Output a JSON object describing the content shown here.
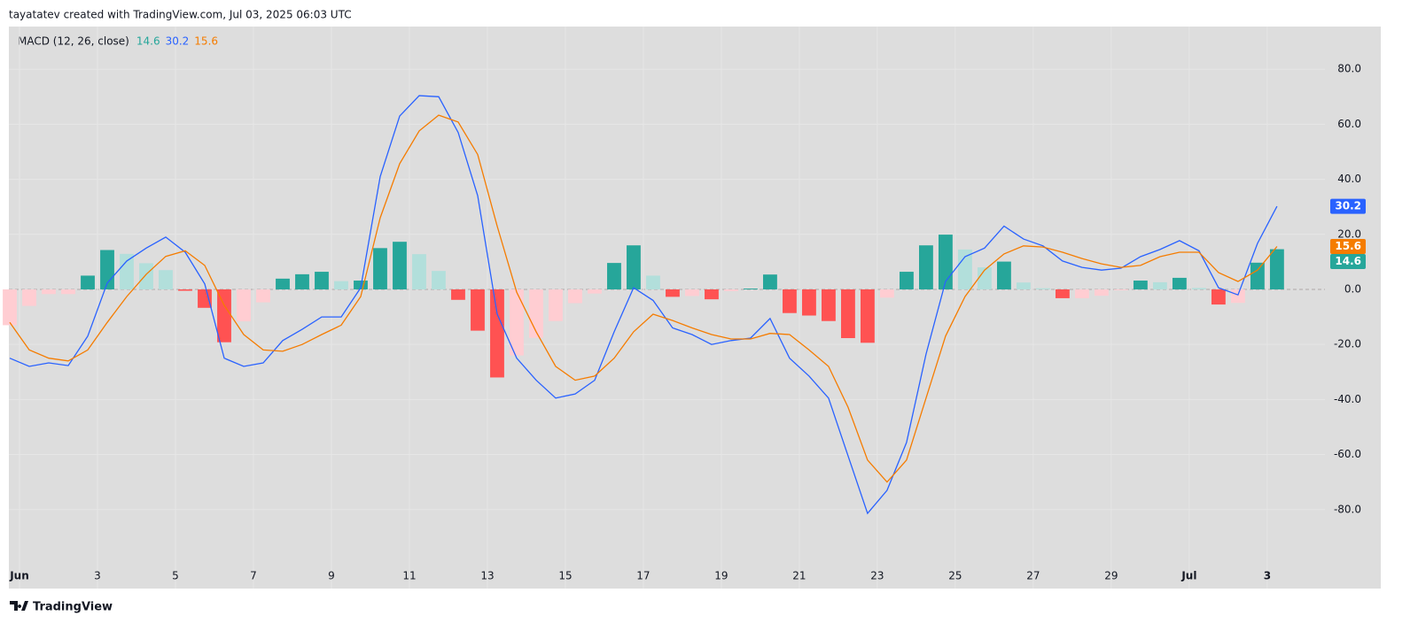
{
  "header": "tayatatev created with TradingView.com, Jul 03, 2025 06:03 UTC",
  "footer": "TradingView",
  "chart_data": {
    "type": "line",
    "title": "MACD (12, 26, close)",
    "x": [
      0.75,
      1.25,
      1.75,
      2.25,
      2.75,
      3.25,
      3.75,
      4.25,
      4.75,
      5.25,
      5.75,
      6.25,
      6.75,
      7.25,
      7.75,
      8.25,
      8.75,
      9.25,
      9.75,
      10.25,
      10.75,
      11.25,
      11.75,
      12.25,
      12.75,
      13.25,
      13.75,
      14.25,
      14.75,
      15.25,
      15.75,
      16.25,
      16.75,
      17.25,
      17.75,
      18.25,
      18.75,
      19.25,
      19.75,
      20.25,
      20.75,
      21.25,
      21.75,
      22.25,
      22.75,
      23.25,
      23.75,
      24.25,
      24.75,
      25.25,
      25.75,
      26.25,
      26.75,
      27.25,
      27.75,
      28.25,
      28.75,
      29.25,
      29.75,
      30.25,
      30.75,
      31.25,
      31.75,
      32.25,
      32.75,
      33.25
    ],
    "series": [
      {
        "type": "bar",
        "colors": [
          "#26a69a",
          "#b2dfdb",
          "#ffcdd2",
          "#ff5252"
        ],
        "color": "#26a69a",
        "values": [
          -13,
          -6,
          -1.7,
          -1.7,
          5,
          14.3,
          12.9,
          9.5,
          7,
          -0.5,
          -6.7,
          -19.2,
          -11.6,
          -4.7,
          3.9,
          5.5,
          6.4,
          3,
          3.2,
          15,
          17.3,
          12.8,
          6.7,
          -3.8,
          -15,
          -32,
          -24,
          -17.6,
          -11.5,
          -5,
          -1.5,
          9.6,
          16,
          5,
          -2.7,
          -2.4,
          -3.6,
          -0.6,
          0.3,
          5.4,
          -8.6,
          -9.5,
          -11.5,
          -17.7,
          -19.4,
          -3,
          6.4,
          16,
          19.9,
          14.5,
          8,
          10.1,
          2.5,
          0.4,
          -3.2,
          -3.2,
          -2.3,
          -0.3,
          3.2,
          2.6,
          4.2,
          0.5,
          -5.5,
          -4.9,
          9.7,
          14.6
        ]
      },
      {
        "type": "line",
        "color": "#2962ff",
        "values": [
          -25,
          -28,
          -26.7,
          -27.7,
          -17,
          2.3,
          10.3,
          15,
          19,
          13.5,
          2,
          -25,
          -28,
          -26.7,
          -18.6,
          -14.5,
          -10,
          -10,
          0.6,
          41,
          63,
          70.4,
          70,
          57,
          34,
          -9,
          -25,
          -33,
          -39.5,
          -38,
          -33,
          -15.4,
          0.6,
          -4,
          -14,
          -16.4,
          -20,
          -18.6,
          -17.7,
          -10.6,
          -25,
          -31.5,
          -39.5,
          -60.5,
          -81.4,
          -73,
          -55.6,
          -23.5,
          2.9,
          11.9,
          15,
          23,
          18.3,
          15.8,
          10.3,
          8,
          7,
          7.7,
          11.9,
          14.5,
          17.7,
          14,
          0.6,
          -2,
          16.7,
          30.2
        ]
      },
      {
        "type": "line",
        "color": "#f57c00",
        "values": [
          -12,
          -22,
          -25,
          -26,
          -22,
          -12,
          -2.6,
          5.5,
          12,
          14,
          8.7,
          -5.8,
          -16.4,
          -22,
          -22.5,
          -20,
          -16.4,
          -13,
          -2.6,
          26,
          45.7,
          57.6,
          63.3,
          60.8,
          49,
          23,
          -1,
          -15.4,
          -28,
          -33,
          -31.5,
          -25,
          -15.4,
          -9,
          -11.3,
          -14,
          -16.4,
          -18,
          -18,
          -16,
          -16.4,
          -22,
          -28,
          -42.8,
          -62,
          -70,
          -62,
          -39.5,
          -17,
          -2.6,
          7,
          12.9,
          15.8,
          15.4,
          13.5,
          11.2,
          9.3,
          8,
          8.7,
          11.9,
          13.5,
          13.5,
          6.1,
          2.9,
          7,
          15.6
        ]
      }
    ],
    "xlim": [
      0.727,
      34.48
    ],
    "ylim": [
      -108.7,
      95.5
    ],
    "xticks": [
      {
        "value": 1,
        "label": "Jun"
      },
      3,
      5,
      7,
      9,
      11,
      13,
      15,
      17,
      19,
      21,
      23,
      25,
      27,
      29,
      {
        "value": 31,
        "label": "Jul"
      },
      {
        "value": 33,
        "label": "3"
      }
    ],
    "yticks": [
      {
        "value": 80,
        "label": "80.0"
      },
      {
        "value": 60,
        "label": "60.0"
      },
      {
        "value": 40,
        "label": "40.0"
      },
      {
        "value": 20,
        "label": "20.0"
      },
      {
        "value": 0,
        "label": "0.0"
      },
      {
        "value": -20,
        "label": "-20.0"
      },
      {
        "value": -40,
        "label": "-40.0"
      },
      {
        "value": -60,
        "label": "-60.0"
      },
      {
        "value": -80,
        "label": "-80.0"
      }
    ],
    "grid": true
  }
}
